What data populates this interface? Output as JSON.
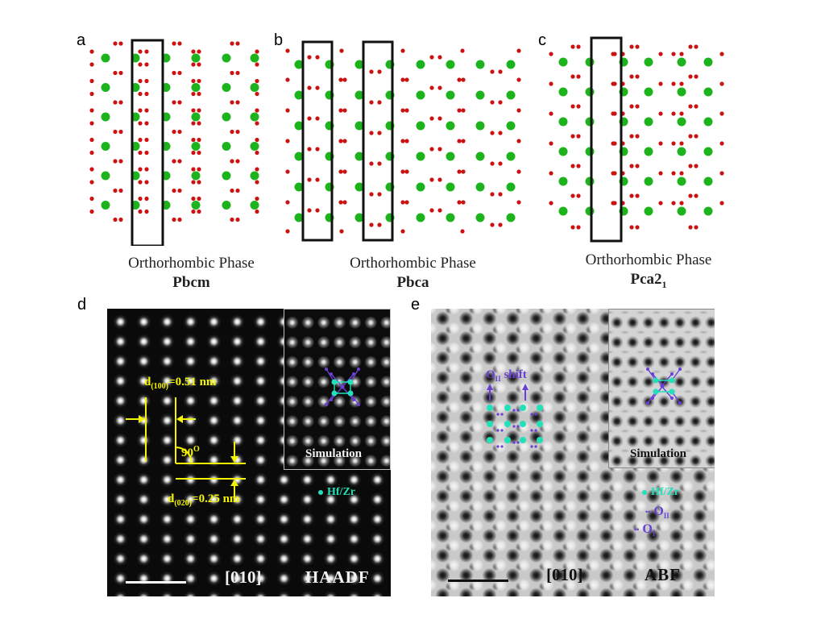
{
  "figure": {
    "panels": {
      "a": {
        "letter": "a",
        "phase": "Orthorhombic Phase",
        "space_group": "Pbcm"
      },
      "b": {
        "letter": "b",
        "phase": "Orthorhombic Phase",
        "space_group": "Pbca"
      },
      "c": {
        "letter": "c",
        "phase": "Orthorhombic Phase",
        "space_group_main": "Pca2",
        "space_group_sub": "1"
      },
      "d": {
        "letter": "d",
        "d100_prefix": "d",
        "d100_sub": "(100)",
        "d100_value": "=0.51 nm",
        "angle_value": "90",
        "angle_sup": "O",
        "d020_prefix": "d",
        "d020_sub": "(020)",
        "d020_value": "=0.25 nm",
        "inset_label": "Simulation",
        "legend_hfzr": "Hf/Zr",
        "zone_axis": "[010]",
        "mode": "HAADF"
      },
      "e": {
        "letter": "e",
        "shift_label_main": "O",
        "shift_label_sub": "II",
        "shift_label_rest": " shift",
        "inset_label": "Simulation",
        "legend_hfzr": "Hf/Zr",
        "legend_oii_main": "O",
        "legend_oii_sub": "II",
        "legend_oi_main": "O",
        "legend_oi_sub": "I",
        "zone_axis": "[010]",
        "mode": "ABF"
      }
    },
    "colors": {
      "metal_atom": "#1db31d",
      "oxygen_atom": "#cc1111",
      "annotation_yellow": "#f5f500",
      "hfzr_teal": "#23e0b8",
      "oxygen_purple": "#6a3fd6"
    }
  }
}
